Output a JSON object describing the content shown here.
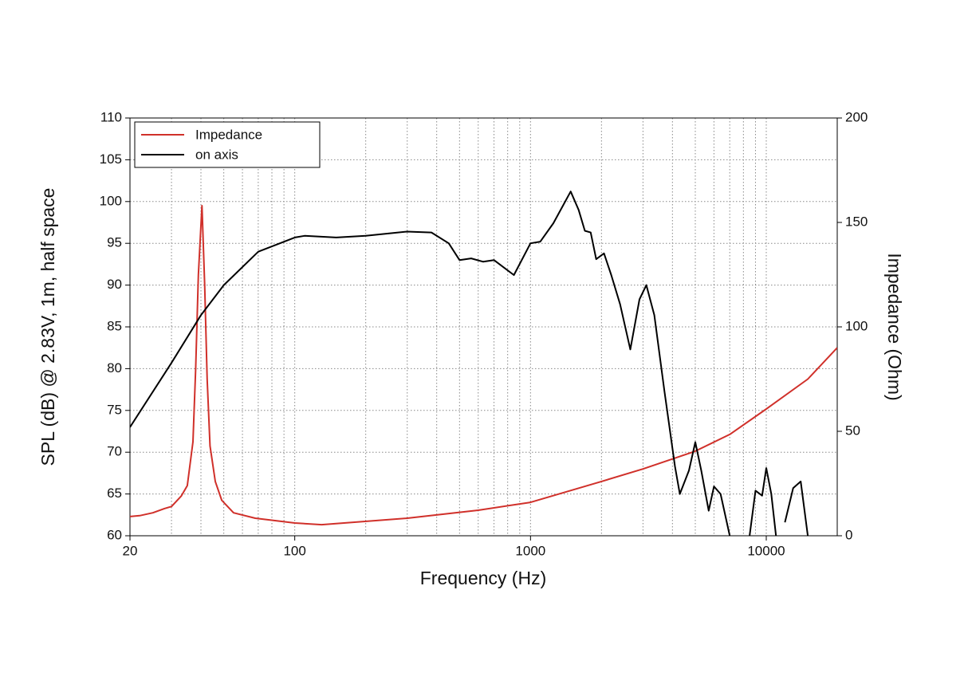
{
  "chart_data": {
    "type": "line",
    "xlabel": "Frequency (Hz)",
    "ylabel": "SPL (dB) @ 2.83V, 1m, half space",
    "y2label": "Impedance (Ohm)",
    "xscale": "log",
    "xlim": [
      20,
      20000
    ],
    "xticks": [
      20,
      100,
      1000,
      10000
    ],
    "ylim": [
      60,
      110
    ],
    "yticks": [
      60,
      65,
      70,
      75,
      80,
      85,
      90,
      95,
      100,
      105,
      110
    ],
    "y2lim": [
      0,
      200
    ],
    "y2ticks": [
      0,
      50,
      100,
      150,
      200
    ],
    "grid": true,
    "legend": "upper left",
    "series": [
      {
        "name": "Impedance",
        "color": "#d0302a",
        "axis": "y2",
        "x": [
          20,
          22,
          25,
          28,
          30,
          33,
          35,
          37,
          38,
          39,
          40.4,
          41.5,
          42.5,
          43.7,
          46,
          49,
          55,
          68,
          100,
          130,
          300,
          600,
          1000,
          2000,
          3000,
          5000,
          7000,
          10000,
          15000,
          20000
        ],
        "values": [
          9.2,
          9.6,
          11,
          13,
          14,
          19,
          24,
          45,
          80,
          125,
          158,
          120,
          75,
          43,
          26,
          17,
          11,
          8.4,
          6.1,
          5.3,
          8.4,
          12.2,
          16,
          26,
          32,
          40.5,
          48.5,
          60.7,
          75,
          90
        ]
      },
      {
        "name": "on axis",
        "color": "#000000",
        "axis": "y",
        "x": [
          20,
          30,
          40,
          50,
          70,
          100,
          110,
          150,
          200,
          300,
          380,
          450,
          500,
          560,
          630,
          700,
          850,
          1000,
          1100,
          1250,
          1480,
          1600,
          1700,
          1800,
          1900,
          2050,
          2200,
          2400,
          2650,
          2900,
          3100,
          3350,
          3700,
          4100,
          4300,
          4700,
          5000,
          5300,
          5700,
          6000,
          6400,
          7000,
          7500,
          8500,
          9000,
          9600,
          10000,
          10500,
          11000,
          11500,
          12000,
          13000,
          14000,
          15000
        ],
        "values": [
          73,
          80.7,
          86.4,
          90,
          94,
          95.7,
          95.9,
          95.7,
          95.9,
          96.4,
          96.3,
          95,
          93,
          93.2,
          92.8,
          93,
          91.2,
          95,
          95.2,
          97.4,
          101.2,
          99,
          96.5,
          96.3,
          93.1,
          93.8,
          91.2,
          87.7,
          82.3,
          88.3,
          90,
          86.4,
          77.3,
          68.3,
          65,
          67.8,
          71.2,
          67.8,
          63,
          65.9,
          65,
          60,
          null,
          60,
          65.4,
          64.8,
          68.1,
          65,
          60,
          null,
          61.6,
          65.7,
          66.5,
          60
        ]
      }
    ]
  }
}
